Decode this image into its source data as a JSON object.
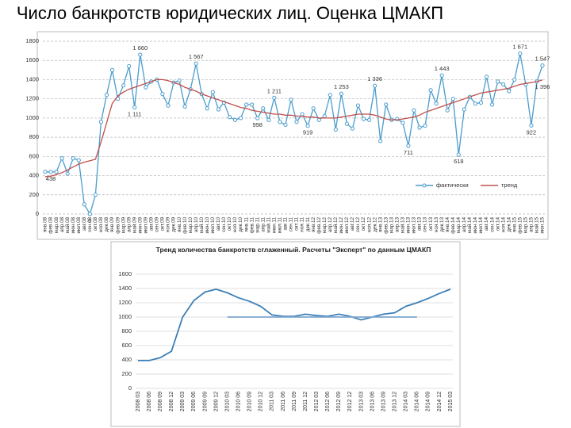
{
  "title": "Число банкротств юридических лиц. Оценка ЦМАКП",
  "chart_data": [
    {
      "type": "line",
      "categories": [
        "янв.08",
        "фев.08",
        "мар.08",
        "апр.08",
        "май.08",
        "июн.08",
        "июл.08",
        "авг.08",
        "сен.08",
        "окт.08",
        "ноя.08",
        "дек.08",
        "янв.09",
        "фев.09",
        "мар.09",
        "апр.09",
        "май.09",
        "июн.09",
        "июл.09",
        "авг.09",
        "сен.09",
        "окт.09",
        "ноя.09",
        "дек.09",
        "янв.10",
        "фев.10",
        "мар.10",
        "апр.10",
        "май.10",
        "июн.10",
        "июл.10",
        "авг.10",
        "сен.10",
        "окт.10",
        "ноя.10",
        "дек.10",
        "янв.11",
        "фев.11",
        "мар.11",
        "апр.11",
        "май.11",
        "июн.11",
        "июл.11",
        "авг.11",
        "сен.11",
        "окт.11",
        "ноя.11",
        "дек.11",
        "янв.12",
        "фев.12",
        "мар.12",
        "апр.12",
        "май.12",
        "июн.12",
        "июл.12",
        "авг.12",
        "сен.12",
        "окт.12",
        "ноя.12",
        "дек.12",
        "янв.13",
        "фев.13",
        "мар.13",
        "апр.13",
        "май.13",
        "июн.13",
        "июл.13",
        "авг.13",
        "сен.13",
        "окт.13",
        "ноя.13",
        "дек.13",
        "янв.14",
        "фев.14",
        "мар.14",
        "апр.14",
        "май.14",
        "июн.14",
        "июл.14",
        "авг.14",
        "сен.14",
        "окт.14",
        "ноя.14",
        "дек.14",
        "янв.15",
        "фев.15",
        "мар.15",
        "апр.15",
        "май.15",
        "июн.15"
      ],
      "series": [
        {
          "name": "фактически",
          "color": "#4a9ccc",
          "marker": "circle",
          "values": [
            440,
            438,
            440,
            580,
            420,
            580,
            560,
            100,
            0,
            200,
            960,
            1240,
            1500,
            1200,
            1340,
            1540,
            1111,
            1660,
            1320,
            1380,
            1400,
            1250,
            1130,
            1370,
            1390,
            1120,
            1300,
            1567,
            1250,
            1100,
            1270,
            1090,
            1160,
            1010,
            980,
            1000,
            1140,
            1140,
            998,
            1100,
            980,
            1211,
            960,
            930,
            1190,
            960,
            1040,
            919,
            1100,
            980,
            1020,
            1240,
            880,
            1253,
            940,
            890,
            1130,
            990,
            980,
            1336,
            760,
            1140,
            980,
            990,
            950,
            711,
            1080,
            900,
            920,
            1290,
            1150,
            1443,
            1080,
            1200,
            618,
            1090,
            1220,
            1150,
            1160,
            1430,
            1140,
            1380,
            1350,
            1280,
            1400,
            1671,
            1350,
            922,
            1380,
            1547
          ],
          "value_labels": [
            null,
            "438",
            null,
            null,
            null,
            null,
            null,
            null,
            "0",
            null,
            null,
            null,
            null,
            null,
            null,
            null,
            "1 111",
            "1 660",
            null,
            null,
            null,
            null,
            null,
            null,
            null,
            null,
            null,
            "1 567",
            null,
            null,
            null,
            null,
            null,
            null,
            null,
            null,
            null,
            null,
            "998",
            null,
            null,
            "1 211",
            null,
            null,
            null,
            null,
            null,
            "919",
            null,
            null,
            null,
            null,
            null,
            "1 253",
            null,
            null,
            null,
            null,
            null,
            "1 336",
            null,
            null,
            null,
            null,
            null,
            "711",
            null,
            null,
            null,
            null,
            null,
            "1 443",
            null,
            null,
            "618",
            null,
            null,
            null,
            null,
            null,
            null,
            null,
            null,
            null,
            null,
            "1 671",
            null,
            "922",
            null,
            "1 547"
          ]
        },
        {
          "name": "тренд",
          "color": "#c0504d",
          "values": [
            390,
            395,
            410,
            430,
            460,
            490,
            520,
            540,
            555,
            570,
            750,
            950,
            1150,
            1230,
            1270,
            1300,
            1320,
            1340,
            1360,
            1380,
            1400,
            1400,
            1390,
            1370,
            1350,
            1320,
            1300,
            1280,
            1250,
            1230,
            1210,
            1190,
            1170,
            1150,
            1130,
            1110,
            1100,
            1080,
            1070,
            1060,
            1050,
            1040,
            1040,
            1030,
            1030,
            1020,
            1020,
            1010,
            1010,
            1000,
            1000,
            1000,
            1000,
            1010,
            1020,
            1030,
            1040,
            1040,
            1040,
            1030,
            1010,
            990,
            980,
            980,
            990,
            1000,
            1010,
            1030,
            1060,
            1080,
            1100,
            1120,
            1140,
            1160,
            1180,
            1200,
            1220,
            1240,
            1260,
            1270,
            1280,
            1290,
            1300,
            1310,
            1330,
            1350,
            1360,
            1370,
            1380,
            1396
          ],
          "value_labels": [
            null,
            null,
            null,
            null,
            null,
            null,
            null,
            null,
            null,
            null,
            null,
            null,
            null,
            null,
            null,
            null,
            null,
            null,
            null,
            null,
            null,
            null,
            null,
            null,
            null,
            null,
            null,
            null,
            null,
            null,
            null,
            null,
            null,
            null,
            null,
            null,
            null,
            null,
            null,
            null,
            null,
            null,
            null,
            null,
            null,
            null,
            null,
            null,
            null,
            null,
            null,
            null,
            null,
            null,
            null,
            null,
            null,
            null,
            null,
            null,
            null,
            null,
            null,
            null,
            null,
            null,
            null,
            null,
            null,
            null,
            null,
            null,
            null,
            null,
            null,
            null,
            null,
            null,
            null,
            null,
            null,
            null,
            null,
            null,
            null,
            null,
            null,
            null,
            null,
            "1 396"
          ]
        }
      ],
      "ylim": [
        0,
        1800
      ],
      "yticks": [
        0,
        200,
        400,
        600,
        800,
        1000,
        1200,
        1400,
        1600,
        1800
      ],
      "grid": true,
      "legend": "bottom-right"
    },
    {
      "type": "line",
      "title": "Тренд количества банкротств сглаженный. Расчеты \"Эксперт\" по данным ЦМАКП",
      "categories": [
        "2008 03",
        "2008 06",
        "2008 09",
        "2008 12",
        "2009 03",
        "2009 06",
        "2009 09",
        "2009 12",
        "2010 03",
        "2010 06",
        "2010 09",
        "2010 12",
        "2011 03",
        "2011 06",
        "2011 09",
        "2011 12",
        "2012 03",
        "2012 06",
        "2012 09",
        "2012 12",
        "2013 03",
        "2013 06",
        "2013 09",
        "2013 12",
        "2014 03",
        "2014 06",
        "2014 09",
        "2014 12",
        "2015 03"
      ],
      "series": [
        {
          "color": "#3d7fb6",
          "values": [
            390,
            390,
            430,
            520,
            1000,
            1230,
            1350,
            1390,
            1340,
            1270,
            1220,
            1150,
            1030,
            1010,
            1010,
            1040,
            1020,
            1010,
            1040,
            1010,
            960,
            1000,
            1040,
            1060,
            1150,
            1200,
            1260,
            1330,
            1390
          ]
        },
        {
          "color": "#7ea6cf",
          "values": [
            null,
            null,
            null,
            null,
            null,
            null,
            null,
            null,
            1000,
            1000,
            1000,
            1000,
            1000,
            1000,
            1000,
            1000,
            1000,
            1000,
            1000,
            1000,
            1000,
            1000,
            1000,
            1000,
            1000,
            1000,
            null,
            null,
            null
          ]
        }
      ],
      "ylim": [
        0,
        1600
      ],
      "yticks": [
        0,
        200,
        400,
        600,
        800,
        1000,
        1200,
        1400,
        1600
      ],
      "grid": true
    }
  ]
}
